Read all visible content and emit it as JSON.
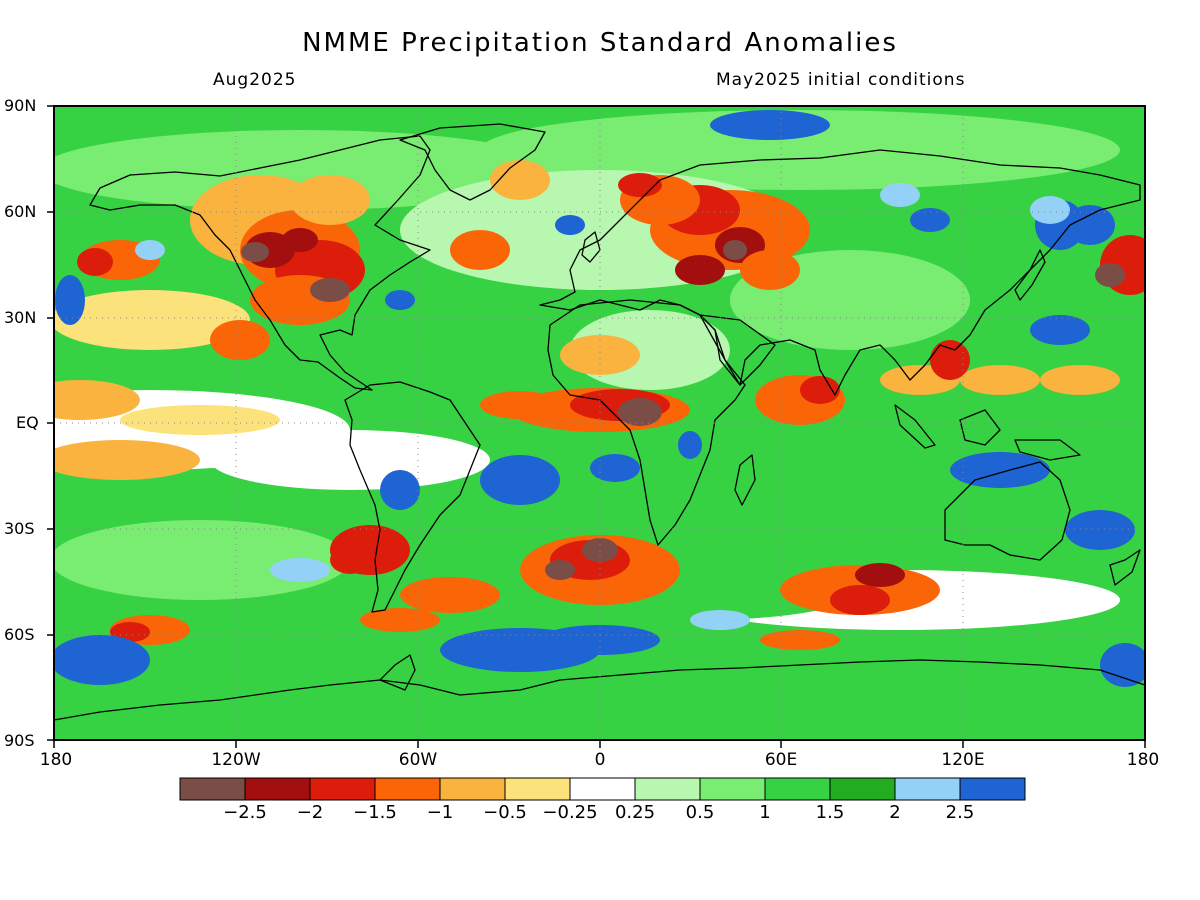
{
  "title": "NMME Precipitation Standard Anomalies",
  "subtitle_left": "Aug2025",
  "subtitle_right": "May2025 initial conditions",
  "map": {
    "projection": "equirectangular",
    "lat_range": [
      -90,
      90
    ],
    "lon_range": [
      -180,
      180
    ],
    "lat_labels": [
      "90N",
      "60N",
      "30N",
      "EQ",
      "30S",
      "60S",
      "90S"
    ],
    "lon_labels": [
      "180",
      "120W",
      "60W",
      "0",
      "60E",
      "120E",
      "180"
    ],
    "gridlines": "dotted"
  },
  "legend": {
    "colors": [
      "#7a4e46",
      "#a30f0f",
      "#dd1d0b",
      "#fa6508",
      "#f9b33e",
      "#fbe27a",
      "#ffffff",
      "#b8f7b0",
      "#79ec72",
      "#37d243",
      "#21ac22",
      "#93d2f6",
      "#1e64d2"
    ],
    "labels": [
      "-2.5",
      "-2",
      "-1.5",
      "-1",
      "-0.5",
      "-0.25",
      "0.25",
      "0.5",
      "1",
      "1.5",
      "2",
      "2.5"
    ]
  }
}
